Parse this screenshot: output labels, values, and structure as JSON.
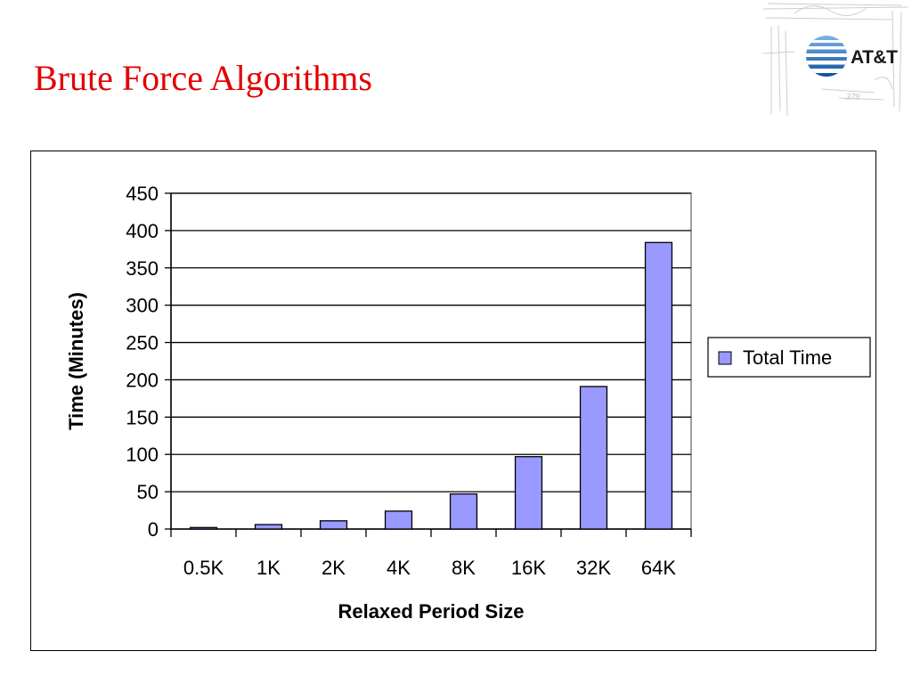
{
  "slide": {
    "title": "Brute Force Algorithms",
    "logo_text": "AT&T"
  },
  "colors": {
    "title": "#e30000",
    "bar_fill": "#9999ff",
    "bar_stroke": "#000000",
    "gridline": "#000000"
  },
  "chart_data": {
    "type": "bar",
    "categories": [
      "0.5K",
      "1K",
      "2K",
      "4K",
      "8K",
      "16K",
      "32K",
      "64K"
    ],
    "series": [
      {
        "name": "Total Time",
        "values": [
          2,
          6,
          11,
          24,
          47,
          97,
          191,
          384
        ]
      }
    ],
    "xlabel": "Relaxed Period Size",
    "ylabel": "Time (Minutes)",
    "ylim": [
      0,
      450
    ],
    "yticks": [
      0,
      50,
      100,
      150,
      200,
      250,
      300,
      350,
      400,
      450
    ],
    "grid": true,
    "legend": "right"
  }
}
